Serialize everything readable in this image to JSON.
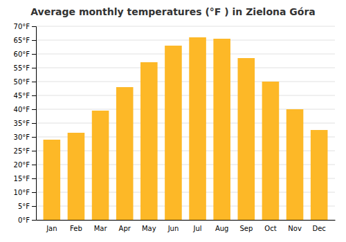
{
  "chart_data": {
    "type": "bar",
    "title": "Average monthly temperatures (°F ) in Zielona Góra",
    "categories": [
      "Jan",
      "Feb",
      "Mar",
      "Apr",
      "May",
      "Jun",
      "Jul",
      "Aug",
      "Sep",
      "Oct",
      "Nov",
      "Dec"
    ],
    "values": [
      29,
      31.5,
      39.5,
      48,
      57,
      63,
      66,
      65.5,
      58.5,
      50,
      40,
      32.5
    ],
    "color": "#FDB827",
    "ylim": [
      0,
      70
    ],
    "yticks": [
      {
        "value": 0,
        "label": "0°F"
      },
      {
        "value": 5,
        "label": "5°F"
      },
      {
        "value": 10,
        "label": "10°F"
      },
      {
        "value": 15,
        "label": "15°F"
      },
      {
        "value": 20,
        "label": "20°F"
      },
      {
        "value": 25,
        "label": "25°F"
      },
      {
        "value": 30,
        "label": "30°F"
      },
      {
        "value": 35,
        "label": "35°F"
      },
      {
        "value": 40,
        "label": "40°F"
      },
      {
        "value": 45,
        "label": "45°F"
      },
      {
        "value": 50,
        "label": "50°F"
      },
      {
        "value": 55,
        "label": "55°F"
      },
      {
        "value": 60,
        "label": "60°F"
      },
      {
        "value": 65,
        "label": "65°F"
      },
      {
        "value": 70,
        "label": "70°F"
      }
    ],
    "grid": true
  }
}
